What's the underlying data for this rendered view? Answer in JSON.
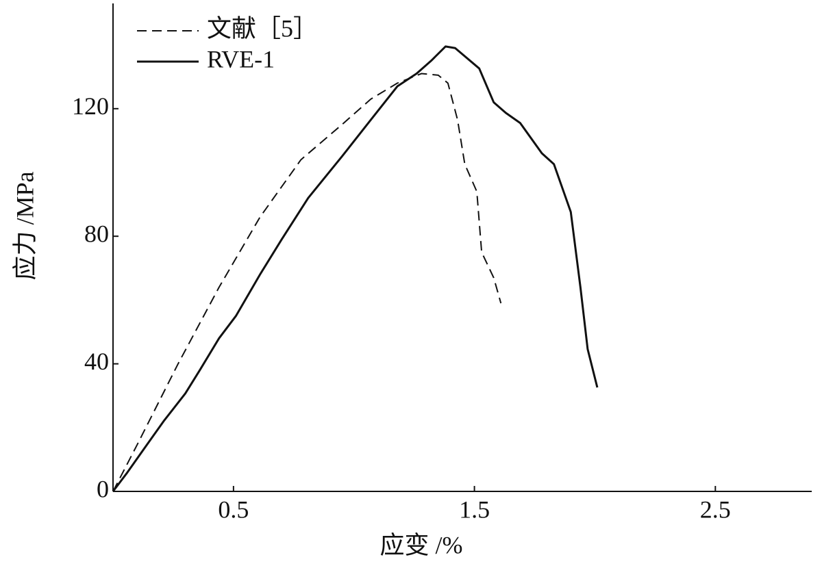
{
  "chart_data": {
    "type": "line",
    "xlabel": "应变 /%",
    "ylabel": "应力 /MPa",
    "xlim": [
      0,
      2.9
    ],
    "xticks": [
      0.5,
      1.5,
      2.5
    ],
    "ylim": [
      0,
      153
    ],
    "yticks": [
      0,
      40,
      80,
      120
    ],
    "legend": "upper left",
    "series": [
      {
        "name": "文献［5］",
        "color": "#111111",
        "style": "dashed",
        "x": [
          0,
          0.1,
          0.27,
          0.44,
          0.61,
          0.78,
          0.95,
          1.07,
          1.18,
          1.28,
          1.35,
          1.39,
          1.43,
          1.46,
          1.51,
          1.53,
          1.58,
          1.61
        ],
        "values": [
          0,
          14.6,
          40,
          64,
          86,
          104,
          115,
          123,
          128,
          131,
          130.5,
          128,
          116.5,
          102.6,
          94,
          75,
          67,
          59
        ]
      },
      {
        "name": "RVE-1",
        "color": "#111111",
        "style": "solid",
        "x": [
          0,
          0.06,
          0.13,
          0.21,
          0.3,
          0.36,
          0.44,
          0.51,
          0.61,
          0.7,
          0.81,
          0.95,
          1.07,
          1.18,
          1.26,
          1.32,
          1.38,
          1.42,
          1.52,
          1.58,
          1.63,
          1.69,
          1.78,
          1.83,
          1.9,
          1.94,
          1.97,
          2.01
        ],
        "values": [
          0,
          6,
          13.5,
          22,
          30.7,
          38,
          48,
          55,
          68,
          79,
          92,
          105,
          116.5,
          127,
          131,
          135,
          139.5,
          139,
          132.6,
          122,
          118.7,
          115.5,
          106,
          102.6,
          87.6,
          64,
          44.6,
          32.6
        ]
      }
    ]
  }
}
